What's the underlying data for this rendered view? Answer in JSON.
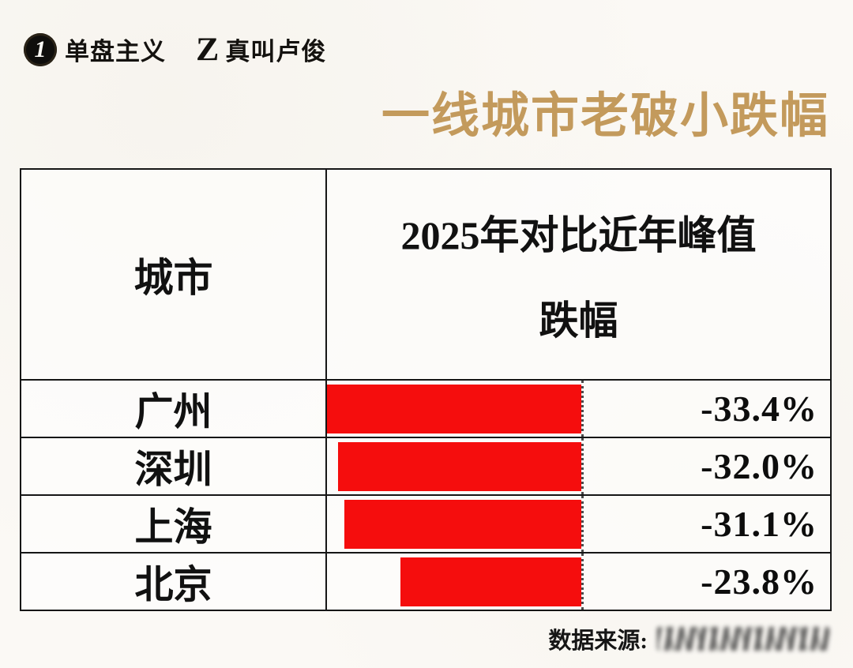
{
  "brand": {
    "icon1_glyph": "1",
    "name1": "单盘主义",
    "icon2_glyph": "Z",
    "name2": "真叫卢俊"
  },
  "title": "一线城市老破小跌幅",
  "table": {
    "city_header": "城市",
    "value_header_line1": "2025年对比近年峰值",
    "value_header_line2": "跌幅"
  },
  "footer": {
    "source_label": "数据来源:"
  },
  "colors": {
    "title_gold": "#c39a5c",
    "bar_red": "#f50d0d",
    "border_black": "#161616"
  },
  "chart_data": {
    "type": "bar",
    "orientation": "horizontal",
    "title": "一线城市老破小跌幅",
    "column_headers": [
      "城市",
      "2025年对比近年峰值跌幅"
    ],
    "categories": [
      "广州",
      "深圳",
      "上海",
      "北京"
    ],
    "values": [
      -33.4,
      -32.0,
      -31.1,
      -23.8
    ],
    "value_labels": [
      "-33.4%",
      "-32.0%",
      "-31.1%",
      "-23.8%"
    ],
    "xlim": [
      -33.4,
      0
    ],
    "bar_anchor": "right",
    "legend": "none",
    "grid": "off"
  }
}
